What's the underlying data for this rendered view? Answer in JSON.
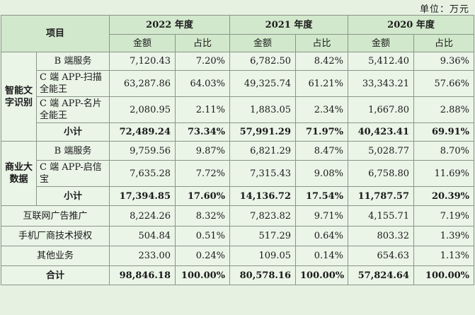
{
  "unit_label": "单位：万元",
  "header": {
    "item": "项目",
    "years": [
      "2022 年度",
      "2021 年度",
      "2020 年度"
    ],
    "amount": "金额",
    "ratio": "占比"
  },
  "groups": [
    {
      "name": "智能文字识别",
      "rows": [
        {
          "label": "B 端服务",
          "v": [
            "7,120.43",
            "7.20%",
            "6,782.50",
            "8.42%",
            "5,412.40",
            "9.36%"
          ]
        },
        {
          "label": "C 端 APP-扫描全能王",
          "v": [
            "63,287.86",
            "64.03%",
            "49,325.74",
            "61.21%",
            "33,343.21",
            "57.66%"
          ]
        },
        {
          "label": "C 端 APP-名片全能王",
          "v": [
            "2,080.95",
            "2.11%",
            "1,883.05",
            "2.34%",
            "1,667.80",
            "2.88%"
          ]
        }
      ],
      "subtotal": {
        "label": "小计",
        "v": [
          "72,489.24",
          "73.34%",
          "57,991.29",
          "71.97%",
          "40,423.41",
          "69.91%"
        ]
      }
    },
    {
      "name": "商业大数据",
      "rows": [
        {
          "label": "B 端服务",
          "v": [
            "9,759.56",
            "9.87%",
            "6,821.29",
            "8.47%",
            "5,028.77",
            "8.70%"
          ]
        },
        {
          "label": "C 端 APP-启信宝",
          "v": [
            "7,635.28",
            "7.72%",
            "7,315.43",
            "9.08%",
            "6,758.80",
            "11.69%"
          ]
        }
      ],
      "subtotal": {
        "label": "小计",
        "v": [
          "17,394.85",
          "17.60%",
          "14,136.72",
          "17.54%",
          "11,787.57",
          "20.39%"
        ]
      }
    }
  ],
  "other_rows": [
    {
      "label": "互联网广告推广",
      "v": [
        "8,224.26",
        "8.32%",
        "7,823.82",
        "9.71%",
        "4,155.71",
        "7.19%"
      ]
    },
    {
      "label": "手机厂商技术授权",
      "v": [
        "504.84",
        "0.51%",
        "517.29",
        "0.64%",
        "803.32",
        "1.39%"
      ]
    },
    {
      "label": "其他业务",
      "v": [
        "233.00",
        "0.24%",
        "109.05",
        "0.14%",
        "654.63",
        "1.13%"
      ]
    }
  ],
  "total": {
    "label": "合计",
    "v": [
      "98,846.18",
      "100.00%",
      "80,578.16",
      "100.00%",
      "57,824.64",
      "100.00%"
    ]
  }
}
